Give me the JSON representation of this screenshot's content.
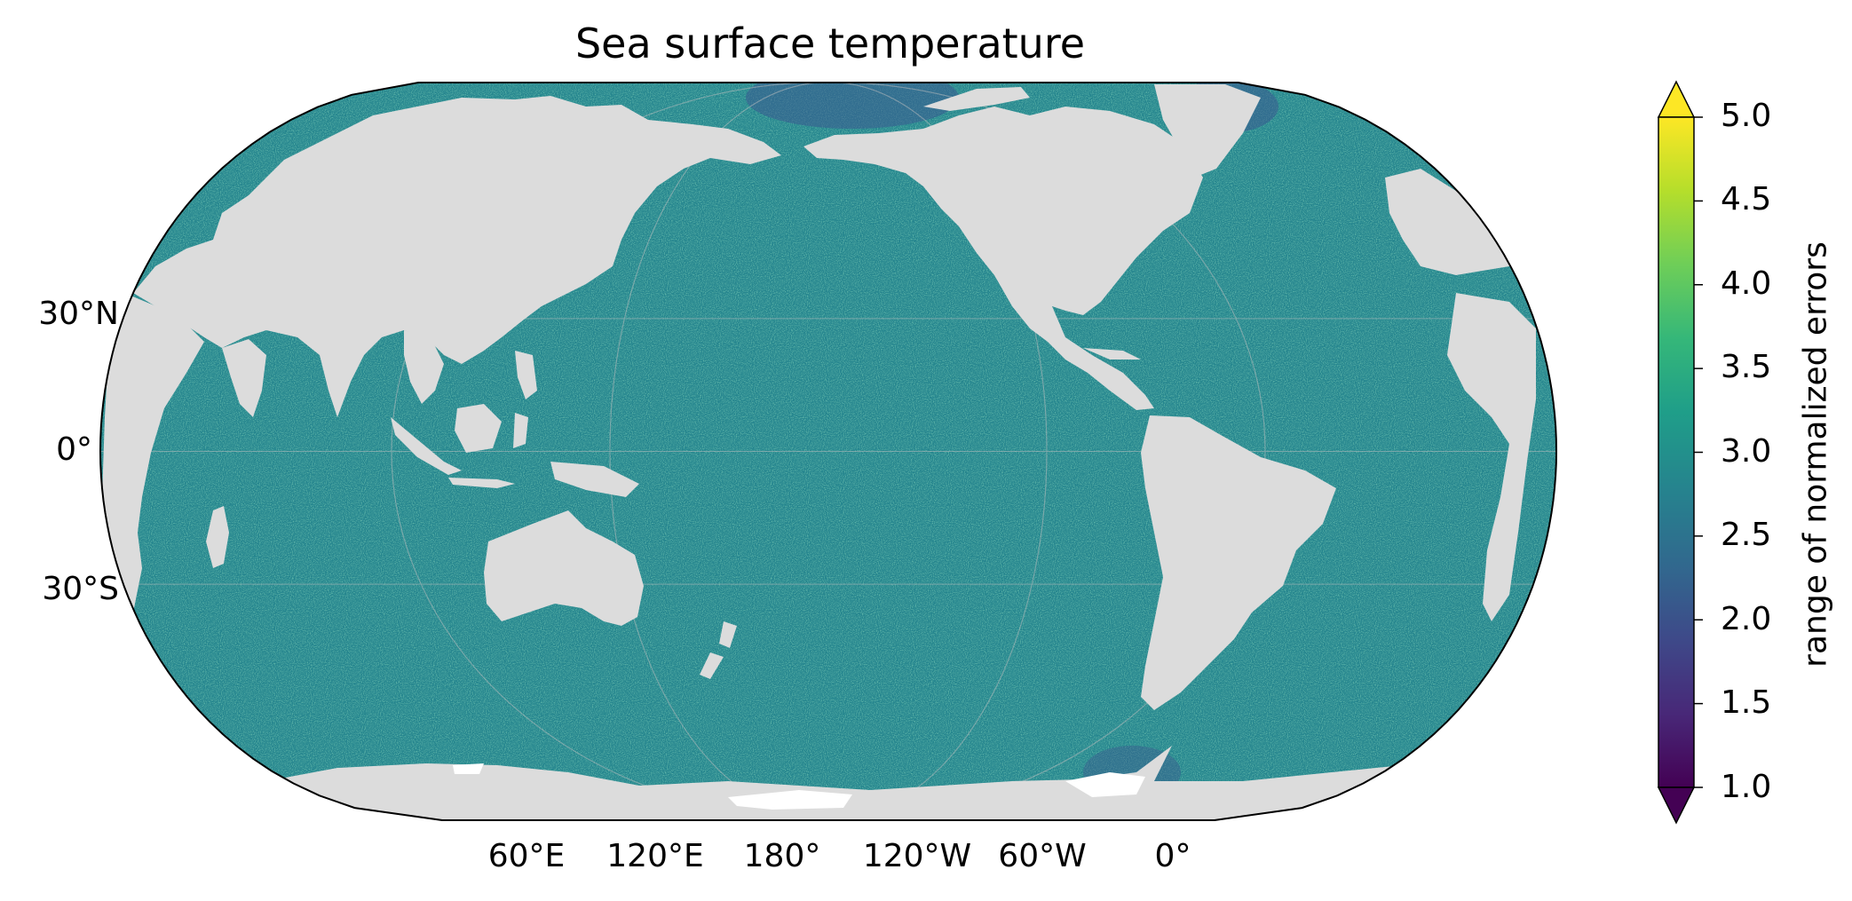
{
  "title": "Sea surface temperature",
  "map": {
    "projection": "Robinson",
    "central_longitude": "180°",
    "land_color": "#dcdcdc",
    "ocean_cmap": "viridis",
    "lat_labels": [
      "30°N",
      "0°",
      "30°S"
    ],
    "lon_labels": [
      "60°E",
      "120°E",
      "180°",
      "120°W",
      "60°W",
      "0°"
    ]
  },
  "colorbar": {
    "label": "range of normalized errors",
    "min": 1.0,
    "max": 5.0,
    "extend": "both",
    "ticks": [
      "1.0",
      "1.5",
      "2.0",
      "2.5",
      "3.0",
      "3.5",
      "4.0",
      "4.5",
      "5.0"
    ],
    "colors": [
      "#440154",
      "#482878",
      "#3e4989",
      "#31688e",
      "#26828e",
      "#1f9e89",
      "#35b779",
      "#6ece58",
      "#b5de2b",
      "#fde725"
    ]
  }
}
